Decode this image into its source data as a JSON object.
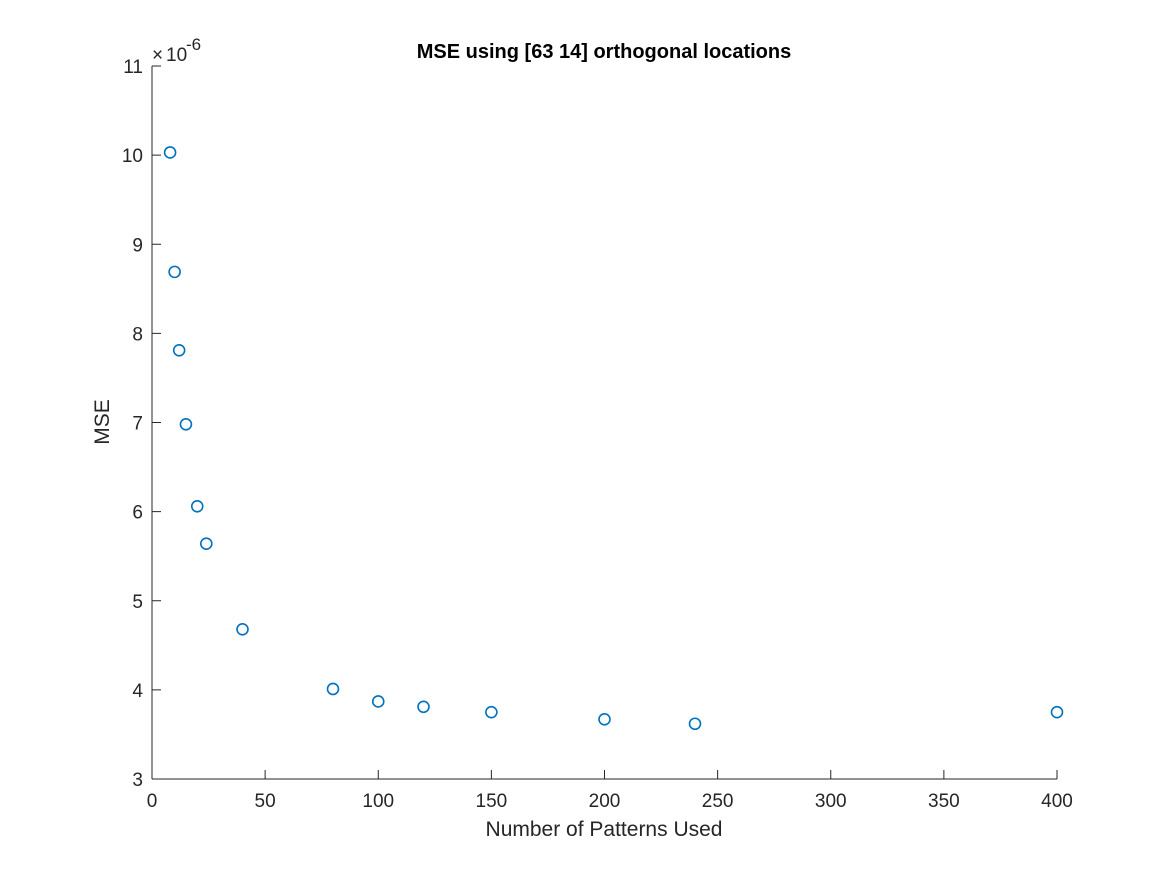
{
  "colors": {
    "background": "#ffffff",
    "axis": "#262626",
    "marker": "#0072bd"
  },
  "chart_data": {
    "type": "scatter",
    "title": "MSE using [63 14] orthogonal locations",
    "xlabel": "Number of Patterns Used",
    "ylabel": "MSE",
    "xlim": [
      0,
      400
    ],
    "ylim": [
      3,
      11
    ],
    "x_ticks": [
      0,
      50,
      100,
      150,
      200,
      250,
      300,
      350,
      400
    ],
    "y_ticks": [
      3,
      4,
      5,
      6,
      7,
      8,
      9,
      10,
      11
    ],
    "y_multiplier": "10",
    "y_multiplier_exponent": "-6",
    "y_multiplier_prefix": "×",
    "marker": "open-circle",
    "grid": false,
    "series": [
      {
        "x": [
          8,
          10,
          12,
          15,
          20,
          24,
          40,
          80,
          100,
          120,
          150,
          200,
          240,
          400
        ],
        "y": [
          10.03,
          8.69,
          7.81,
          6.98,
          6.06,
          5.64,
          4.68,
          4.01,
          3.87,
          3.81,
          3.75,
          3.67,
          3.62,
          3.75
        ]
      }
    ]
  }
}
